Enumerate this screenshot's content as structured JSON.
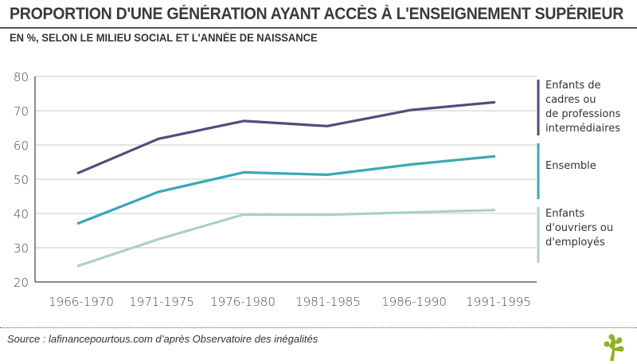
{
  "header": {
    "title": "PROPORTION D'UNE GÉNÉRATION AYANT ACCÈS À L'ENSEIGNEMENT SUPÉRIEUR",
    "subtitle": "EN %, SELON LE MILIEU SOCIAL ET L'ANNÉE DE NAISSANCE"
  },
  "footer": {
    "source": "Source : lafinancepourtous.com d’après Observatoire des inégalités",
    "logo_icon": "tree-icon",
    "logo_color": "#8fb21e"
  },
  "chart_data": {
    "type": "line",
    "title": "PROPORTION D'UNE GÉNÉRATION AYANT ACCÈS À L'ENSEIGNEMENT SUPÉRIEUR",
    "subtitle": "EN %, SELON LE MILIEU SOCIAL ET L'ANNÉE DE NAISSANCE",
    "xlabel": "",
    "ylabel": "",
    "categories": [
      "1966-1970",
      "1971-1975",
      "1976-1980",
      "1981-1985",
      "1986-1990",
      "1991-1995"
    ],
    "ylim": [
      20,
      80
    ],
    "yticks": [
      20,
      30,
      40,
      50,
      60,
      70,
      80
    ],
    "grid": true,
    "legend_position": "right",
    "series": [
      {
        "name": "Enfants de cadres ou de professions intermédiaires",
        "legend_lines": [
          "Enfants de",
          "cadres ou",
          "de professions",
          "intermédiaires"
        ],
        "color": "#574a7e",
        "values": [
          51.7,
          61.8,
          67.0,
          65.5,
          70.2,
          72.5
        ]
      },
      {
        "name": "Ensemble",
        "legend_lines": [
          "Ensemble"
        ],
        "color": "#3aa8b3",
        "values": [
          37.0,
          46.3,
          52.0,
          51.3,
          54.3,
          56.7
        ]
      },
      {
        "name": "Enfants d'ouvriers ou d'employés",
        "legend_lines": [
          "Enfants",
          "d'ouvriers ou",
          "d'employés"
        ],
        "color": "#a9d2c6",
        "values": [
          24.6,
          32.5,
          39.7,
          39.6,
          40.3,
          41.0
        ]
      }
    ]
  }
}
